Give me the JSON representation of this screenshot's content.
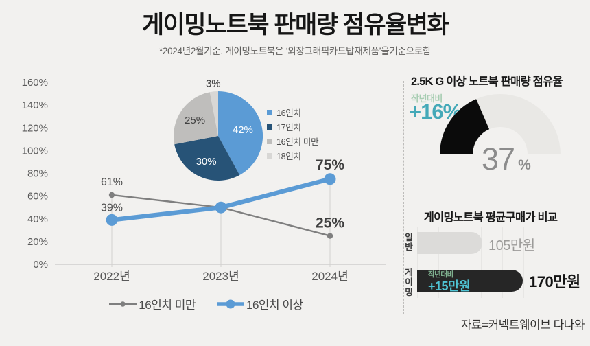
{
  "header": {
    "title": "게이밍노트북 판매량 점유율변화",
    "subtitle": "*2024년2월기준. 게이밍노트북은 ‘외장그래픽카드탑재제품’을기준으로함"
  },
  "source": "자료=커넥트웨이브 다나와",
  "chart_data": [
    {
      "id": "share-line",
      "type": "line",
      "categories": [
        "2022년",
        "2023년",
        "2024년"
      ],
      "series": [
        {
          "name": "16인치 미만",
          "color": "#7F7F7F",
          "values": [
            61,
            50,
            25
          ],
          "labels": [
            "61%",
            "",
            "25%"
          ]
        },
        {
          "name": "16인치 이상",
          "color": "#5B9BD5",
          "values": [
            39,
            50,
            75
          ],
          "labels": [
            "39%",
            "",
            "75%"
          ]
        }
      ],
      "ylim": [
        0,
        160
      ],
      "ytick_step": 20,
      "ytick_suffix": "%",
      "grid": false,
      "legend_position": "bottom"
    },
    {
      "id": "size-share-pie",
      "type": "pie",
      "slices": [
        {
          "label": "16인치",
          "value": 42,
          "color": "#5B9BD5",
          "label_color": "#FFFFFF",
          "label_r": 0.57
        },
        {
          "label": "17인치",
          "value": 30,
          "color": "#275377",
          "label_color": "#FFFFFF",
          "label_r": 0.63
        },
        {
          "label": "16인치 미만",
          "value": 25,
          "color": "#BFBEBC",
          "label_color": "#404040",
          "label_r": 0.63
        },
        {
          "label": "18인치",
          "value": 3,
          "color": "#D8D7D5",
          "label_color": "#404040",
          "label_r": 1.18
        }
      ],
      "legend_position": "right"
    },
    {
      "id": "2_5k-gauge",
      "type": "gauge",
      "title": "2.5K G 이상 노트북 판매량 점유율",
      "value": 37,
      "max": 100,
      "value_label": "37",
      "unit": "%",
      "delta_label": "작년대비",
      "delta_value": "+16%",
      "colors": {
        "fill": "#0B0B0B",
        "track": "#E9E8E5"
      }
    },
    {
      "id": "avg-price-bars",
      "type": "bar",
      "title": "게이밍노트북 평균구매가 비교",
      "categories": [
        "일반",
        "게이밍"
      ],
      "values": [
        105,
        170
      ],
      "value_labels": [
        "105만원",
        "170만원"
      ],
      "bar_colors": [
        "#DCDBD9",
        "#262626"
      ],
      "delta": {
        "label": "작년대비",
        "value": "+15만원",
        "applies_to": "게이밍"
      }
    }
  ]
}
